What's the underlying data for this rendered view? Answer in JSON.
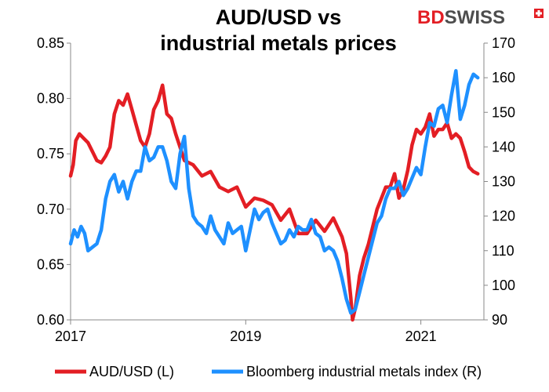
{
  "brand": {
    "bd": "BD",
    "swiss": "SWISS",
    "bd_color": "#e31e24",
    "swiss_color": "#4d4d4d"
  },
  "chart_data": {
    "type": "line",
    "title_lines": [
      "AUD/USD vs",
      "industrial metals prices"
    ],
    "x_ticks": [
      "2017",
      "2019",
      "2021"
    ],
    "xlim": [
      2017.0,
      2021.72
    ],
    "left_axis": {
      "ylim": [
        0.6,
        0.85
      ],
      "ticks": [
        "0.60",
        "0.65",
        "0.70",
        "0.75",
        "0.80",
        "0.85"
      ]
    },
    "right_axis": {
      "ylim": [
        90,
        170
      ],
      "ticks": [
        "90",
        "100",
        "110",
        "120",
        "130",
        "140",
        "150",
        "160",
        "170"
      ]
    },
    "grid": false,
    "legend_position": "bottom",
    "series": [
      {
        "name": "AUD/USD (L)",
        "axis": "left",
        "color": "#e31e24",
        "x": [
          2017.0,
          2017.03,
          2017.06,
          2017.1,
          2017.15,
          2017.2,
          2017.25,
          2017.3,
          2017.35,
          2017.4,
          2017.45,
          2017.5,
          2017.55,
          2017.6,
          2017.65,
          2017.7,
          2017.75,
          2017.8,
          2017.85,
          2017.9,
          2017.95,
          2018.0,
          2018.05,
          2018.1,
          2018.15,
          2018.2,
          2018.25,
          2018.3,
          2018.4,
          2018.5,
          2018.6,
          2018.7,
          2018.8,
          2018.9,
          2019.0,
          2019.1,
          2019.2,
          2019.3,
          2019.4,
          2019.5,
          2019.6,
          2019.7,
          2019.8,
          2019.9,
          2020.0,
          2020.1,
          2020.15,
          2020.2,
          2020.22,
          2020.25,
          2020.3,
          2020.35,
          2020.4,
          2020.45,
          2020.5,
          2020.55,
          2020.6,
          2020.65,
          2020.7,
          2020.75,
          2020.8,
          2020.85,
          2020.9,
          2020.95,
          2021.0,
          2021.05,
          2021.1,
          2021.15,
          2021.2,
          2021.25,
          2021.3,
          2021.35,
          2021.4,
          2021.45,
          2021.5,
          2021.55,
          2021.6,
          2021.65
        ],
        "y": [
          0.73,
          0.74,
          0.762,
          0.768,
          0.764,
          0.76,
          0.752,
          0.744,
          0.742,
          0.748,
          0.756,
          0.786,
          0.798,
          0.794,
          0.804,
          0.79,
          0.776,
          0.762,
          0.756,
          0.768,
          0.79,
          0.798,
          0.812,
          0.786,
          0.782,
          0.768,
          0.756,
          0.744,
          0.74,
          0.73,
          0.734,
          0.72,
          0.716,
          0.72,
          0.702,
          0.71,
          0.708,
          0.704,
          0.69,
          0.7,
          0.678,
          0.678,
          0.69,
          0.68,
          0.692,
          0.675,
          0.66,
          0.62,
          0.6,
          0.61,
          0.64,
          0.656,
          0.668,
          0.684,
          0.7,
          0.71,
          0.72,
          0.72,
          0.732,
          0.71,
          0.718,
          0.735,
          0.758,
          0.772,
          0.768,
          0.774,
          0.786,
          0.766,
          0.772,
          0.772,
          0.778,
          0.764,
          0.768,
          0.764,
          0.752,
          0.738,
          0.734,
          0.732
        ]
      },
      {
        "name": "Bloomberg industrial metals index (R)",
        "axis": "right",
        "color": "#1e90ff",
        "x": [
          2017.0,
          2017.04,
          2017.08,
          2017.12,
          2017.16,
          2017.2,
          2017.25,
          2017.3,
          2017.35,
          2017.4,
          2017.45,
          2017.5,
          2017.55,
          2017.6,
          2017.65,
          2017.7,
          2017.75,
          2017.8,
          2017.85,
          2017.9,
          2017.95,
          2018.0,
          2018.05,
          2018.1,
          2018.15,
          2018.2,
          2018.25,
          2018.3,
          2018.35,
          2018.4,
          2018.45,
          2018.5,
          2018.55,
          2018.6,
          2018.65,
          2018.7,
          2018.75,
          2018.8,
          2018.85,
          2018.9,
          2018.95,
          2019.0,
          2019.05,
          2019.1,
          2019.15,
          2019.2,
          2019.25,
          2019.3,
          2019.35,
          2019.4,
          2019.45,
          2019.5,
          2019.55,
          2019.6,
          2019.65,
          2019.7,
          2019.75,
          2019.8,
          2019.85,
          2019.9,
          2019.95,
          2020.0,
          2020.05,
          2020.1,
          2020.15,
          2020.2,
          2020.25,
          2020.3,
          2020.35,
          2020.4,
          2020.45,
          2020.5,
          2020.55,
          2020.6,
          2020.65,
          2020.7,
          2020.75,
          2020.8,
          2020.85,
          2020.9,
          2020.95,
          2021.0,
          2021.05,
          2021.1,
          2021.15,
          2021.2,
          2021.25,
          2021.3,
          2021.35,
          2021.4,
          2021.45,
          2021.5,
          2021.55,
          2021.6,
          2021.65
        ],
        "y": [
          112,
          116,
          114,
          117,
          115,
          110,
          111,
          112,
          116,
          125,
          130,
          132,
          127,
          130,
          125,
          130,
          133,
          133,
          140,
          136,
          137,
          140,
          140,
          136,
          130,
          128,
          138,
          143,
          128,
          120,
          118,
          117,
          115,
          120,
          116,
          114,
          112,
          118,
          115,
          116,
          117,
          110,
          116,
          122,
          119,
          121,
          122,
          118,
          115,
          112,
          113,
          116,
          114,
          117,
          116,
          116,
          119,
          115,
          114,
          110,
          111,
          110,
          107,
          102,
          96,
          92,
          93,
          98,
          103,
          108,
          113,
          118,
          120,
          125,
          128,
          128,
          130,
          126,
          128,
          131,
          134,
          132,
          140,
          147,
          146,
          151,
          152,
          147,
          155,
          162,
          148,
          152,
          158,
          161,
          160
        ]
      }
    ]
  }
}
